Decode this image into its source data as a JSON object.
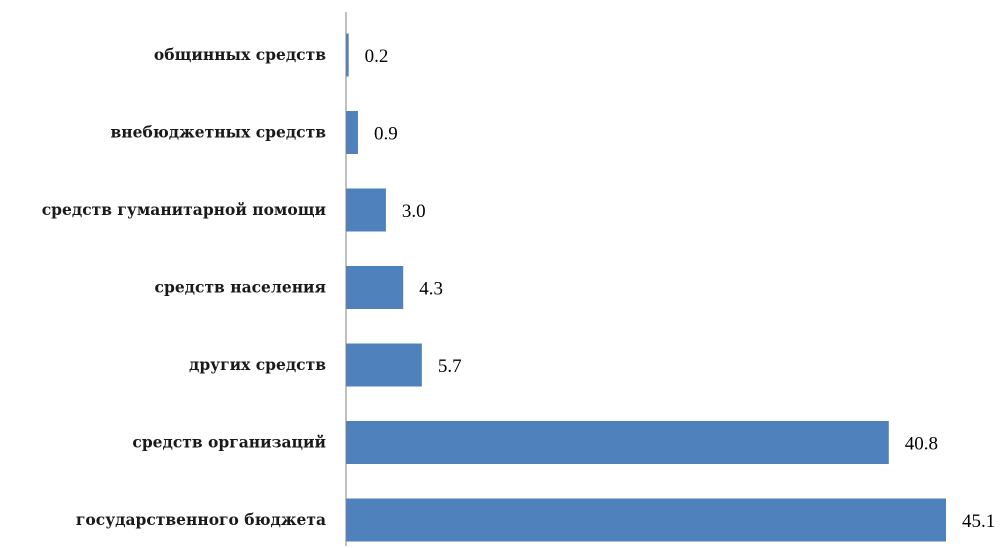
{
  "chart_data": {
    "type": "bar",
    "orientation": "horizontal",
    "categories": [
      "общинных средств",
      "внебюджетных средств",
      "средств гуманитарной помощи",
      "средств населения",
      "других средств",
      "средств организаций",
      "государственного бюджета"
    ],
    "values": [
      0.2,
      0.9,
      3.0,
      4.3,
      5.7,
      40.8,
      45.1
    ],
    "value_labels": [
      "0.2",
      "0.9",
      "3.0",
      "4.3",
      "5.7",
      "40.8",
      "45.1"
    ],
    "title": "",
    "xlabel": "",
    "ylabel": "",
    "xlim": [
      0,
      45.1
    ],
    "grid": false,
    "legend": "none",
    "bar_color": "#4f81bd",
    "axis_color": "#808080"
  }
}
